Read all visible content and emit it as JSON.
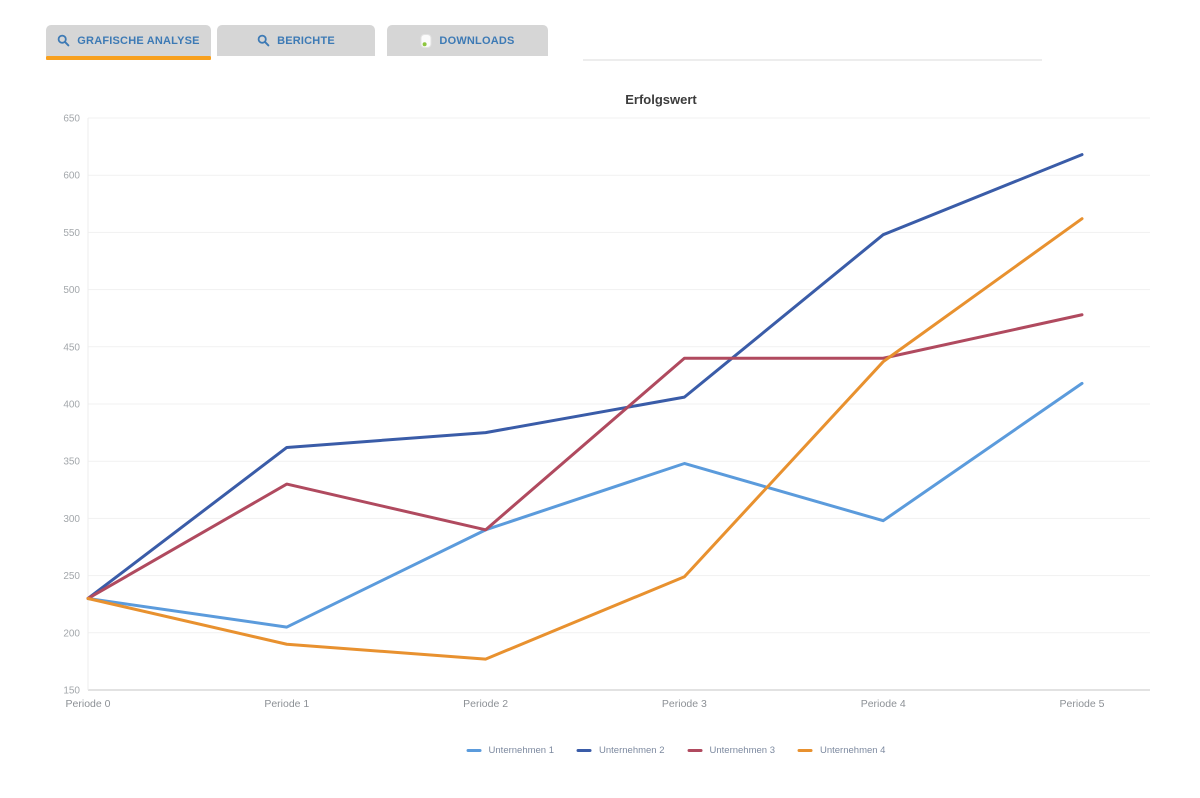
{
  "tabs": [
    {
      "label": "GRAFISCHE ANALYSE",
      "icon": "search-icon",
      "active": true
    },
    {
      "label": "BERICHTE",
      "icon": "search-icon",
      "active": false
    },
    {
      "label": "DOWNLOADS",
      "icon": "download-icon",
      "active": false
    }
  ],
  "colors": {
    "tab_background": "#d6d6d6",
    "tab_text": "#3d7ab5",
    "active_tab_underline": "#f8a01e",
    "gridline": "#f1f1f1",
    "axis_line": "#e2e2e2",
    "tick_label": "#a3a7ab",
    "legend_text": "#7d8aa0"
  },
  "chart_data": {
    "type": "line",
    "title": "Erfolgswert",
    "categories": [
      "Periode 0",
      "Periode 1",
      "Periode 2",
      "Periode 3",
      "Periode 4",
      "Periode 5"
    ],
    "series": [
      {
        "name": "Unternehmen 1",
        "color": "#5b9bdc",
        "values": [
          230,
          205,
          290,
          348,
          298,
          418
        ]
      },
      {
        "name": "Unternehmen 2",
        "color": "#3a5ca8",
        "values": [
          230,
          362,
          375,
          406,
          548,
          618
        ]
      },
      {
        "name": "Unternehmen 3",
        "color": "#b04a5f",
        "values": [
          230,
          330,
          290,
          440,
          440,
          478
        ]
      },
      {
        "name": "Unternehmen 4",
        "color": "#e8912f",
        "values": [
          230,
          190,
          177,
          249,
          437,
          562
        ]
      }
    ],
    "xlabel": "",
    "ylabel": "",
    "ylim": [
      150,
      650
    ],
    "ytick_step": 50,
    "grid": true,
    "legend_position": "bottom"
  }
}
